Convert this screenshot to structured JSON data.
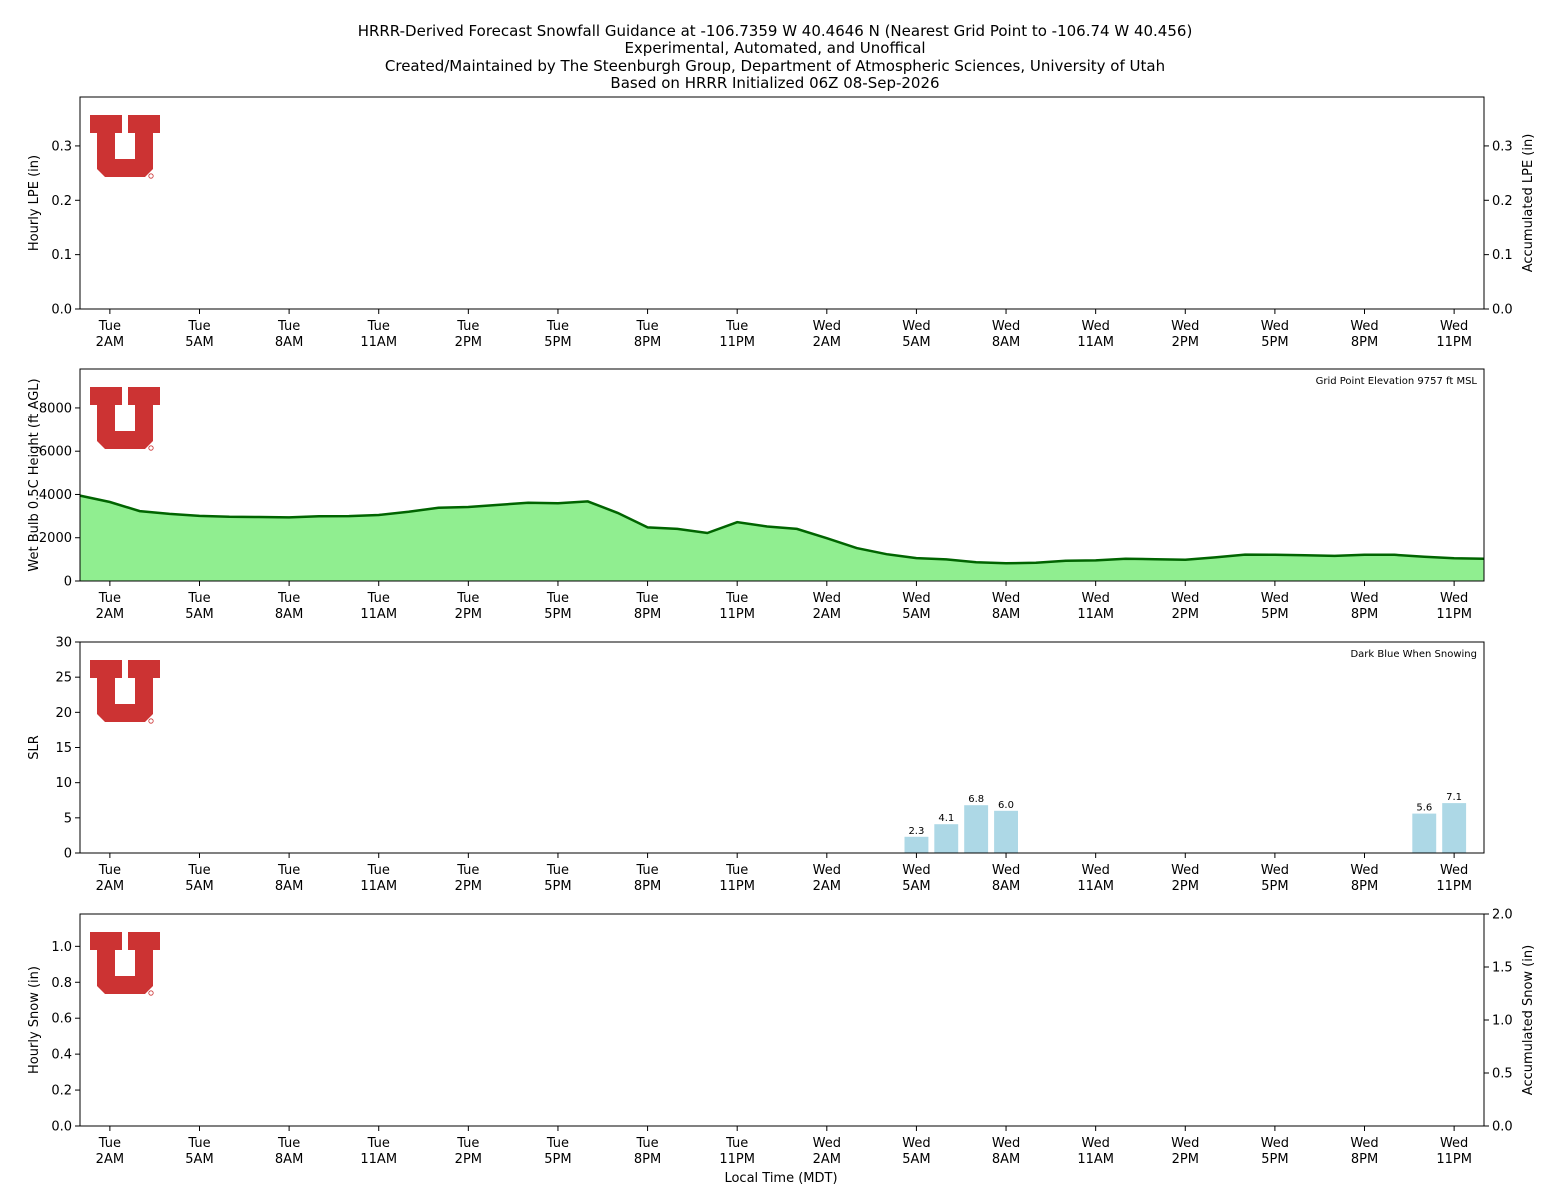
{
  "title_lines": [
    "HRRR-Derived Forecast Snowfall Guidance at -106.7359 W 40.4646 N (Nearest Grid Point to -106.74 W 40.456)",
    "Experimental, Automated, and Unoffical",
    "Created/Maintained by The Steenburgh Group, Department of Atmospheric Sciences, University of Utah",
    "Based on HRRR Initialized 06Z 08-Sep-2026"
  ],
  "xlabel": "Local Time (MDT)",
  "colors": {
    "logo_red": "#CC3333",
    "wetbulb_fill": "#90EE90",
    "wetbulb_line": "#006400",
    "slr_bar": "#ADD8E6"
  },
  "logo_icon": "university-of-utah-u-logo",
  "shared_x": {
    "hours_min": -1,
    "hours_max": 46,
    "tick_hours": [
      0,
      3,
      6,
      9,
      12,
      15,
      18,
      21,
      24,
      27,
      30,
      33,
      36,
      39,
      42,
      45
    ],
    "tick_labels": [
      [
        "Tue",
        "2AM"
      ],
      [
        "Tue",
        "5AM"
      ],
      [
        "Tue",
        "8AM"
      ],
      [
        "Tue",
        "11AM"
      ],
      [
        "Tue",
        "2PM"
      ],
      [
        "Tue",
        "5PM"
      ],
      [
        "Tue",
        "8PM"
      ],
      [
        "Tue",
        "11PM"
      ],
      [
        "Wed",
        "2AM"
      ],
      [
        "Wed",
        "5AM"
      ],
      [
        "Wed",
        "8AM"
      ],
      [
        "Wed",
        "11AM"
      ],
      [
        "Wed",
        "2PM"
      ],
      [
        "Wed",
        "5PM"
      ],
      [
        "Wed",
        "8PM"
      ],
      [
        "Wed",
        "11PM"
      ]
    ]
  },
  "chart_data": [
    {
      "type": "bar",
      "ylabel": "Hourly LPE (in)",
      "ylabel_right": "Accumulated LPE (in)",
      "ylim": [
        0,
        0.39
      ],
      "yticks": [
        "0.0",
        "0.1",
        "0.2",
        "0.3"
      ],
      "ylim_right": [
        0,
        0.39
      ],
      "yticks_right": [
        "0.0",
        "0.1",
        "0.2",
        "0.3"
      ],
      "values": []
    },
    {
      "type": "area",
      "ylabel": "Wet Bulb 0.5C Height (ft AGL)",
      "annotation": "Grid Point Elevation 9757 ft MSL",
      "ylim": [
        0,
        9800
      ],
      "yticks": [
        "0",
        "2000",
        "4000",
        "6000",
        "8000"
      ],
      "x_hours": [
        -1,
        0,
        1,
        2,
        3,
        4,
        5,
        6,
        7,
        8,
        9,
        10,
        11,
        12,
        13,
        14,
        15,
        16,
        17,
        18,
        19,
        20,
        21,
        22,
        23,
        24,
        25,
        26,
        27,
        28,
        29,
        30,
        31,
        32,
        33,
        34,
        35,
        36,
        37,
        38,
        39,
        40,
        41,
        42,
        43,
        44,
        45,
        46
      ],
      "values": [
        3950,
        3650,
        3230,
        3100,
        3010,
        2970,
        2960,
        2940,
        2990,
        3000,
        3050,
        3200,
        3390,
        3420,
        3520,
        3620,
        3590,
        3680,
        3150,
        2480,
        2410,
        2220,
        2720,
        2520,
        2410,
        1980,
        1520,
        1240,
        1060,
        1000,
        870,
        820,
        840,
        940,
        950,
        1030,
        1010,
        980,
        1090,
        1220,
        1210,
        1190,
        1160,
        1210,
        1210,
        1120,
        1050,
        1030
      ]
    },
    {
      "type": "bar",
      "ylabel": "SLR",
      "annotation": "Dark Blue When Snowing",
      "ylim": [
        0,
        30
      ],
      "yticks": [
        "0",
        "5",
        "10",
        "15",
        "20",
        "25",
        "30"
      ],
      "x_hours": [
        27,
        28,
        29,
        30,
        44,
        45
      ],
      "values": [
        2.3,
        4.1,
        6.8,
        6.0,
        5.6,
        7.1
      ],
      "labels": [
        "2.3",
        "4.1",
        "6.8",
        "6.0",
        "5.6",
        "7.1"
      ]
    },
    {
      "type": "bar",
      "ylabel": "Hourly Snow (in)",
      "ylabel_right": "Accumulated Snow (in)",
      "ylim": [
        0,
        1.18
      ],
      "yticks": [
        "0.0",
        "0.2",
        "0.4",
        "0.6",
        "0.8",
        "1.0"
      ],
      "ylim_right": [
        0,
        2.0
      ],
      "yticks_right": [
        "0.0",
        "0.5",
        "1.0",
        "1.5",
        "2.0"
      ],
      "values": []
    }
  ]
}
